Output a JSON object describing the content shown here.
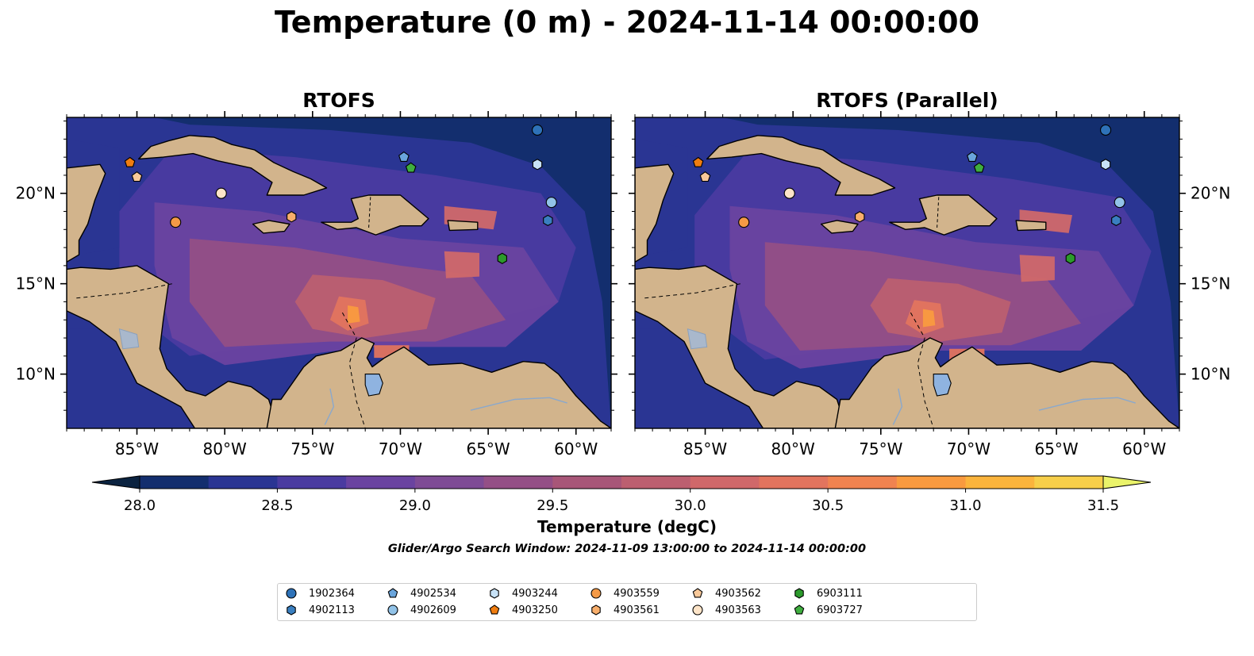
{
  "title": "Temperature (0 m) - 2024-11-14 00:00:00",
  "panels": [
    {
      "title": "RTOFS"
    },
    {
      "title": "RTOFS (Parallel)"
    }
  ],
  "map": {
    "lon_range": [
      -89,
      -58
    ],
    "lat_range": [
      7,
      24.2
    ],
    "lon_ticks": [
      -85,
      -80,
      -75,
      -70,
      -65,
      -60
    ],
    "lon_tick_labels": [
      "85°W",
      "80°W",
      "75°W",
      "70°W",
      "65°W",
      "60°W"
    ],
    "lat_ticks": [
      10,
      15,
      20
    ],
    "lat_tick_labels": [
      "10°N",
      "15°N",
      "20°N"
    ]
  },
  "colorbar": {
    "label": "Temperature (degC)",
    "min": 28.0,
    "max": 31.5,
    "ticks": [
      "28.0",
      "28.5",
      "29.0",
      "29.5",
      "30.0",
      "30.5",
      "31.0",
      "31.5"
    ],
    "colors": [
      "#0b2340",
      "#132e6e",
      "#2a3593",
      "#4a3ba0",
      "#6a43a0",
      "#7e4b95",
      "#944f86",
      "#a85678",
      "#bc5f70",
      "#d0686a",
      "#e2745e",
      "#f08350",
      "#f99a3f",
      "#fbb43c",
      "#f7cf4a",
      "#eaf36a"
    ]
  },
  "search_window": "Glider/Argo Search Window: 2024-11-09 13:00:00 to 2024-11-14 00:00:00",
  "floats": [
    {
      "id": "1902364",
      "marker": "circle",
      "color": "#2e72b8",
      "lon": -62.2,
      "lat": 23.5
    },
    {
      "id": "4902113",
      "marker": "hexagon",
      "color": "#3a7fc0",
      "lon": -61.6,
      "lat": 18.5
    },
    {
      "id": "4902534",
      "marker": "pentagon",
      "color": "#6aa5dc",
      "lon": -69.8,
      "lat": 22.0
    },
    {
      "id": "4902609",
      "marker": "circle",
      "color": "#92c3e8",
      "lon": -61.4,
      "lat": 19.5
    },
    {
      "id": "4903244",
      "marker": "hexagon",
      "color": "#c7e2f7",
      "lon": -62.2,
      "lat": 21.6
    },
    {
      "id": "4903250",
      "marker": "pentagon",
      "color": "#f07d10",
      "lon": -85.4,
      "lat": 21.7
    },
    {
      "id": "4903559",
      "marker": "circle",
      "color": "#f59a46",
      "lon": -82.8,
      "lat": 18.4
    },
    {
      "id": "4903561",
      "marker": "hexagon",
      "color": "#f8ae6b",
      "lon": -76.2,
      "lat": 18.7
    },
    {
      "id": "4903562",
      "marker": "pentagon",
      "color": "#f9c99a",
      "lon": -85.0,
      "lat": 20.9
    },
    {
      "id": "4903563",
      "marker": "circle",
      "color": "#fde4c8",
      "lon": -80.2,
      "lat": 20.0
    },
    {
      "id": "6903111",
      "marker": "hexagon",
      "color": "#2c9a2c",
      "lon": -64.2,
      "lat": 16.4
    },
    {
      "id": "6903727",
      "marker": "pentagon",
      "color": "#3fae3f",
      "lon": -69.4,
      "lat": 21.4
    }
  ]
}
